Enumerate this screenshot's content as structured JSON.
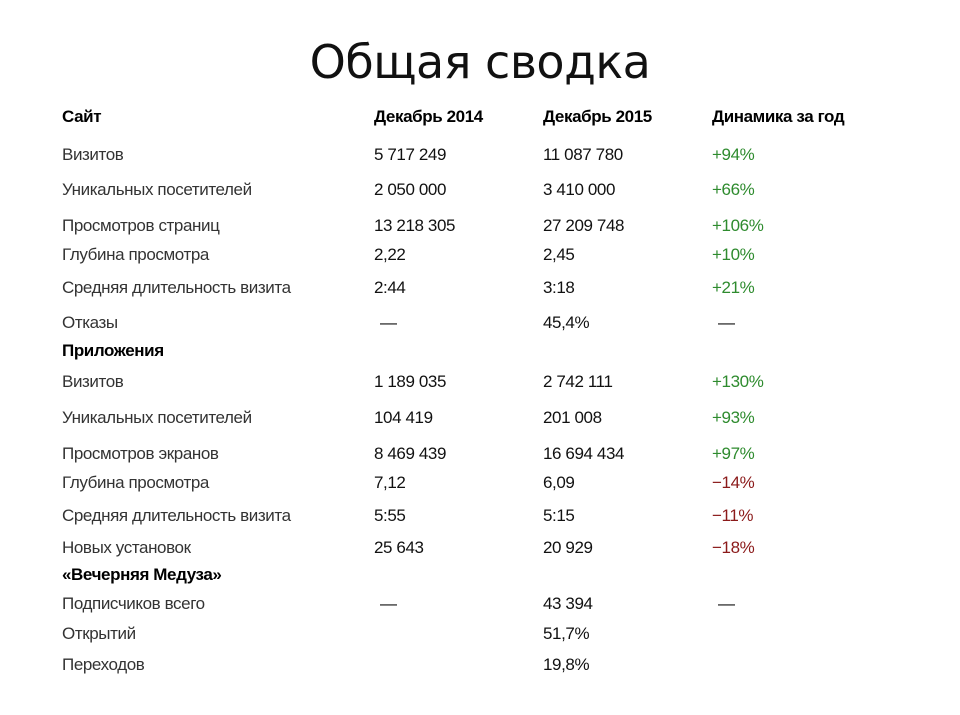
{
  "title": "Общая сводка",
  "colors": {
    "positive": "#2e8b2e",
    "negative": "#8b1a1a"
  },
  "header": [
    "Сайт",
    "Декабрь 2014",
    "Декабрь 2015",
    "Динамика за год"
  ],
  "rows": [
    {
      "type": "data",
      "cells": [
        "Визитов",
        "5 717 249",
        "11 087 780",
        "+94%"
      ]
    },
    {
      "type": "data",
      "cells": [
        "Уникальных посетителей",
        "2 050 000",
        "3 410 000",
        "+66%"
      ]
    },
    {
      "type": "data",
      "cells": [
        "Просмотров страниц",
        "13 218 305",
        "27 209 748",
        "+106%"
      ]
    },
    {
      "type": "data",
      "cells": [
        "Глубина просмотра",
        "2,22",
        "2,45",
        "+10%"
      ]
    },
    {
      "type": "data",
      "cells": [
        "Средняя длительность визита",
        "2:44",
        "3:18",
        "+21%"
      ]
    },
    {
      "type": "data",
      "cells": [
        "Отказы",
        "—",
        "45,4%",
        "—"
      ]
    },
    {
      "type": "section",
      "cells": [
        "Приложения"
      ]
    },
    {
      "type": "data",
      "cells": [
        "Визитов",
        "1 189 035",
        "2 742 111",
        "+130%"
      ]
    },
    {
      "type": "data",
      "cells": [
        "Уникальных посетителей",
        "104 419",
        "201 008",
        "+93%"
      ]
    },
    {
      "type": "data",
      "cells": [
        "Просмотров экранов",
        "8 469 439",
        "16 694 434",
        "+97%"
      ]
    },
    {
      "type": "data",
      "cells": [
        "Глубина просмотра",
        "7,12",
        "6,09",
        "−14%"
      ]
    },
    {
      "type": "data",
      "cells": [
        "Средняя длительность визита",
        "5:55",
        "5:15",
        "−11%"
      ]
    },
    {
      "type": "data",
      "cells": [
        "Новых установок",
        "25 643",
        "20 929",
        "−18%"
      ]
    },
    {
      "type": "section",
      "cells": [
        "«Вечерняя Медуза»"
      ]
    },
    {
      "type": "data",
      "cells": [
        "Подписчиков всего",
        "—",
        "43 394",
        "—"
      ]
    },
    {
      "type": "data",
      "cells": [
        "Открытий",
        "",
        "51,7%",
        ""
      ]
    },
    {
      "type": "data",
      "cells": [
        "Переходов",
        "",
        "19,8%",
        ""
      ]
    }
  ]
}
